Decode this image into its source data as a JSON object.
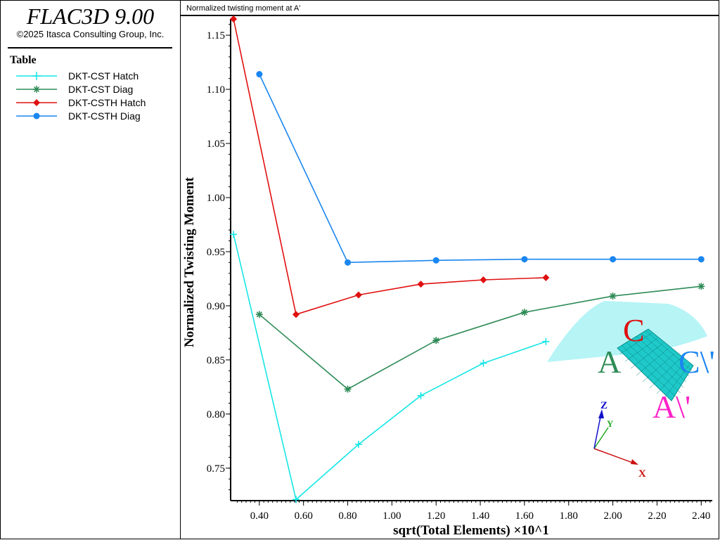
{
  "app": {
    "title": "FLAC3D 9.00",
    "copyright": "©2025 Itasca Consulting Group, Inc."
  },
  "legend": {
    "title": "Table",
    "items": [
      {
        "label": "DKT-CST Hatch",
        "color": "#17e5e5",
        "marker": "plus"
      },
      {
        "label": "DKT-CST Diag",
        "color": "#2e8b57",
        "marker": "asterisk"
      },
      {
        "label": "DKT-CSTH Hatch",
        "color": "#e01010",
        "marker": "diamond"
      },
      {
        "label": "DKT-CSTH Diag",
        "color": "#1a86f0",
        "marker": "circle"
      }
    ]
  },
  "plot_title": "Normalized twisting moment at A'",
  "chart_data": {
    "type": "line",
    "title": "Normalized twisting moment at A'",
    "xlabel": "sqrt(Total Elements) ×10^1",
    "ylabel": "Normalized Twisting Moment",
    "xlim": [
      0.27,
      2.45
    ],
    "ylim": [
      0.72,
      1.165
    ],
    "xticks": [
      0.4,
      0.6,
      0.8,
      1.0,
      1.2,
      1.4,
      1.6,
      1.8,
      2.0,
      2.2,
      2.4
    ],
    "xtick_labels": [
      "0.40",
      "0.60",
      "0.80",
      "1.00",
      "1.20",
      "1.40",
      "1.60",
      "1.80",
      "2.00",
      "2.20",
      "2.40"
    ],
    "yticks": [
      0.75,
      0.8,
      0.85,
      0.9,
      0.95,
      1.0,
      1.05,
      1.1,
      1.15
    ],
    "ytick_labels": [
      "0.75",
      "0.80",
      "0.85",
      "0.90",
      "0.95",
      "1.00",
      "1.05",
      "1.10",
      "1.15"
    ],
    "series": [
      {
        "name": "DKT-CST Hatch",
        "color": "#17e5e5",
        "marker": "plus",
        "x": [
          0.283,
          0.566,
          0.849,
          1.131,
          1.414,
          1.697
        ],
        "y": [
          0.966,
          0.721,
          0.772,
          0.817,
          0.847,
          0.867
        ]
      },
      {
        "name": "DKT-CST Diag",
        "color": "#2e8b57",
        "marker": "asterisk",
        "x": [
          0.4,
          0.8,
          1.2,
          1.6,
          2.0,
          2.4
        ],
        "y": [
          0.892,
          0.823,
          0.868,
          0.894,
          0.909,
          0.918
        ]
      },
      {
        "name": "DKT-CSTH Hatch",
        "color": "#e01010",
        "marker": "diamond",
        "x": [
          0.283,
          0.566,
          0.849,
          1.131,
          1.414,
          1.697
        ],
        "y": [
          1.165,
          0.892,
          0.91,
          0.92,
          0.924,
          0.926
        ]
      },
      {
        "name": "DKT-CSTH Diag",
        "color": "#1a86f0",
        "marker": "circle",
        "x": [
          0.4,
          0.8,
          1.2,
          1.6,
          2.0,
          2.4
        ],
        "y": [
          1.114,
          0.94,
          0.942,
          0.943,
          0.943,
          0.943
        ]
      }
    ]
  },
  "inset": {
    "labels": {
      "c": "C",
      "c_prime": "C\\'",
      "a": "A",
      "a_prime": "A\\'"
    },
    "axes": {
      "z": "Z",
      "y": "Y",
      "x": "X"
    },
    "colors": {
      "surface": "#b6f4f6",
      "mesh": "#1fc9c9",
      "c": "#e01010",
      "c_prime": "#1a86f0",
      "a": "#2e8b57",
      "a_prime": "#ff22c8",
      "x_axis": "#cc1111",
      "y_axis": "#22aa22",
      "z_axis": "#1111cc"
    }
  }
}
